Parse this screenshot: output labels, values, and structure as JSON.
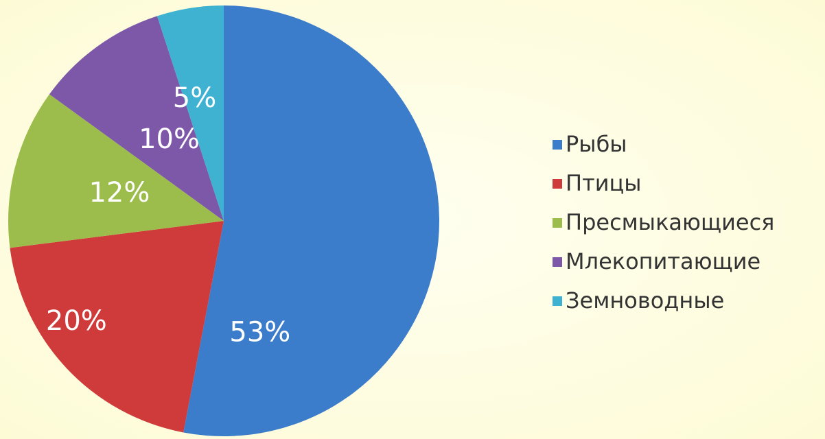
{
  "chart_data": {
    "type": "pie",
    "categories": [
      "Рыбы",
      "Птицы",
      "Пресмыкающиеся",
      "Млекопитающие",
      "Земноводные"
    ],
    "values": [
      53,
      20,
      12,
      10,
      5
    ],
    "value_labels": [
      "53%",
      "20%",
      "12%",
      "10%",
      "5%"
    ],
    "colors": [
      "#3b7ccb",
      "#cf3b3b",
      "#9cbd4b",
      "#7d58a8",
      "#3fb2d2"
    ],
    "legend": "right"
  }
}
